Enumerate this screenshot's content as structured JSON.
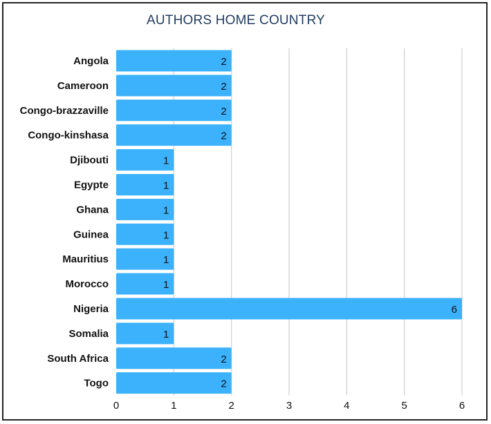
{
  "chart_data": {
    "type": "bar",
    "orientation": "horizontal",
    "title": "AUTHORS HOME COUNTRY",
    "categories": [
      "Angola",
      "Cameroon",
      "Congo-brazzaville",
      "Congo-kinshasa",
      "Djibouti",
      "Egypte",
      "Ghana",
      "Guinea",
      "Mauritius",
      "Morocco",
      "Nigeria",
      "Somalia",
      "South Africa",
      "Togo"
    ],
    "values": [
      2,
      2,
      2,
      2,
      1,
      1,
      1,
      1,
      1,
      1,
      6,
      1,
      2,
      2
    ],
    "x_ticks": [
      "0",
      "1",
      "2",
      "3",
      "4",
      "5",
      "6"
    ],
    "xlim": [
      0,
      6
    ],
    "grid": true,
    "bar_color": "#3bb2fb",
    "grid_color": "#cfcfcf",
    "title_color": "#1f3a5f"
  }
}
